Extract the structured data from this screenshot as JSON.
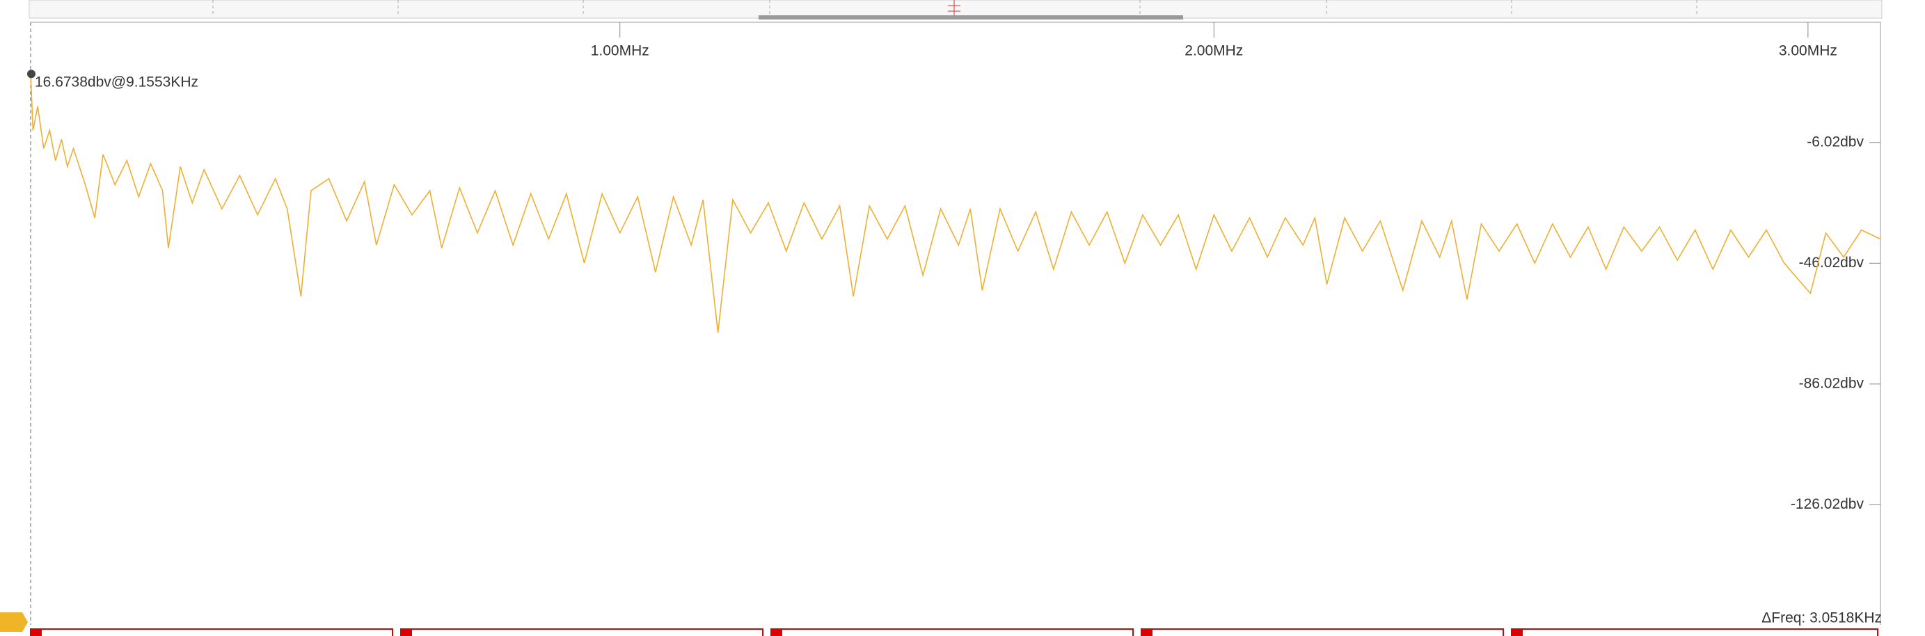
{
  "chart_data": {
    "type": "line",
    "xlim": [
      0.008,
      3.122
    ],
    "ylim": [
      -165.8,
      33.8
    ],
    "xticks": [
      {
        "value": 1,
        "label": "1.00MHz"
      },
      {
        "value": 2,
        "label": "2.00MHz"
      },
      {
        "value": 3,
        "label": "3.00MHz"
      }
    ],
    "yticks": [
      {
        "value": -6.02,
        "label": "-6.02dbv"
      },
      {
        "value": -46.02,
        "label": "-46.02dbv"
      },
      {
        "value": -86.02,
        "label": "-86.02dbv"
      },
      {
        "value": -126.02,
        "label": "-126.02dbv"
      }
    ],
    "marker": {
      "x": 0.0091553,
      "y": 16.6738,
      "label": "16.6738dbv@9.1553KHz"
    },
    "footer": "ΔFreq: 3.0518KHz",
    "series": [
      {
        "color": "#eeb033",
        "x": [
          0.008,
          0.012,
          0.02,
          0.03,
          0.04,
          0.05,
          0.06,
          0.07,
          0.08,
          0.1,
          0.116,
          0.13,
          0.15,
          0.17,
          0.19,
          0.21,
          0.23,
          0.24,
          0.26,
          0.28,
          0.3,
          0.33,
          0.36,
          0.39,
          0.42,
          0.44,
          0.463,
          0.48,
          0.51,
          0.54,
          0.57,
          0.59,
          0.62,
          0.65,
          0.68,
          0.7,
          0.73,
          0.76,
          0.79,
          0.82,
          0.85,
          0.88,
          0.91,
          0.94,
          0.97,
          1.0,
          1.03,
          1.06,
          1.09,
          1.12,
          1.14,
          1.165,
          1.19,
          1.22,
          1.25,
          1.28,
          1.31,
          1.34,
          1.37,
          1.393,
          1.42,
          1.45,
          1.48,
          1.51,
          1.54,
          1.57,
          1.59,
          1.61,
          1.64,
          1.67,
          1.7,
          1.73,
          1.76,
          1.79,
          1.82,
          1.85,
          1.88,
          1.91,
          1.94,
          1.97,
          2.0,
          2.03,
          2.06,
          2.09,
          2.12,
          2.15,
          2.17,
          2.19,
          2.22,
          2.25,
          2.28,
          2.318,
          2.35,
          2.38,
          2.4,
          2.426,
          2.45,
          2.48,
          2.51,
          2.54,
          2.57,
          2.6,
          2.63,
          2.66,
          2.69,
          2.72,
          2.75,
          2.78,
          2.81,
          2.84,
          2.87,
          2.9,
          2.93,
          2.96,
          3.004,
          3.03,
          3.06,
          3.09,
          3.122
        ],
        "values": [
          16.67,
          -2,
          6,
          -8,
          -2,
          -12,
          -5,
          -14,
          -8,
          -20,
          -31,
          -10,
          -20,
          -12,
          -24,
          -13,
          -22,
          -41,
          -14,
          -26,
          -15,
          -28,
          -17,
          -30,
          -18,
          -28,
          -57,
          -22,
          -18,
          -32,
          -19,
          -40,
          -20,
          -30,
          -22,
          -41,
          -21,
          -36,
          -22,
          -40,
          -23,
          -38,
          -23,
          -46,
          -23,
          -36,
          -24,
          -49,
          -24,
          -40,
          -25,
          -69,
          -25,
          -36,
          -26,
          -42,
          -26,
          -38,
          -27,
          -57,
          -27,
          -38,
          -27,
          -50,
          -28,
          -40,
          -28,
          -55,
          -28,
          -42,
          -29,
          -48,
          -29,
          -40,
          -29,
          -46,
          -30,
          -40,
          -30,
          -48,
          -30,
          -42,
          -31,
          -44,
          -31,
          -40,
          -31,
          -53,
          -31,
          -42,
          -32,
          -55,
          -32,
          -44,
          -32,
          -58,
          -33,
          -42,
          -33,
          -46,
          -33,
          -44,
          -34,
          -48,
          -34,
          -42,
          -34,
          -45,
          -35,
          -48,
          -35,
          -44,
          -35,
          -46,
          -56,
          -36,
          -44,
          -35,
          -38
        ]
      }
    ]
  }
}
